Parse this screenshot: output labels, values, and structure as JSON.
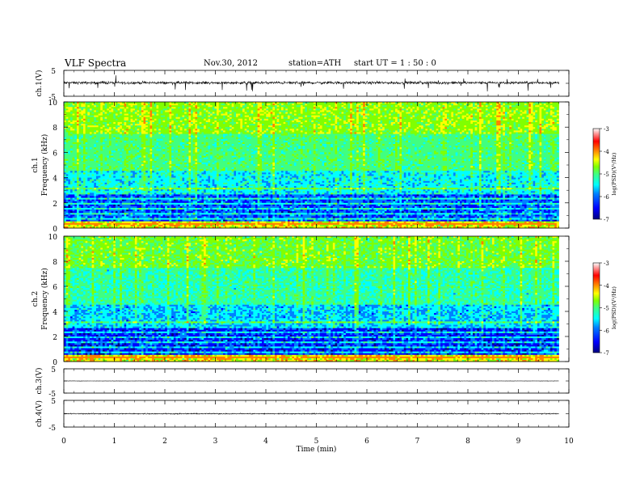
{
  "header": {
    "title": "VLF  Spectra",
    "date": "Nov.30, 2012",
    "station": "station=ATH",
    "start": "start  UT  =   1 : 50 : 0"
  },
  "colors": {
    "colormap": [
      "#000080",
      "#0000ff",
      "#0080ff",
      "#00ffff",
      "#40ff80",
      "#80ff00",
      "#ffff00",
      "#ff8000",
      "#ff0000",
      "#ffffff"
    ]
  },
  "chart_data": [
    {
      "type": "line",
      "ylabel": "ch.1(V)",
      "yticks": [
        "5",
        "-5"
      ],
      "ylim": [
        -5,
        5
      ],
      "description_values": {
        "baseline": 0.2,
        "noise_amplitude": 1.2
      }
    },
    {
      "type": "heatmap",
      "ylabel_channel": "ch.1",
      "ylabel": "Frequency  (kHz)",
      "yticks": [
        "10",
        "8",
        "6",
        "4",
        "2",
        "0"
      ],
      "ylim": [
        0,
        10
      ],
      "xlim": [
        0,
        10
      ],
      "colorbar": {
        "label": "log(PSD)(V²/Hz)",
        "ticks": [
          "-3",
          "-4",
          "-5",
          "-6",
          "-7"
        ],
        "range": [
          -7,
          -3
        ]
      }
    },
    {
      "type": "heatmap",
      "ylabel_channel": "ch.2",
      "ylabel": "Frequency  (kHz)",
      "yticks": [
        "10",
        "8",
        "6",
        "4",
        "2",
        "0"
      ],
      "ylim": [
        0,
        10
      ],
      "xlim": [
        0,
        10
      ],
      "colorbar": {
        "label": "log(PSD)(V²/Hz)",
        "ticks": [
          "-3",
          "-4",
          "-5",
          "-6",
          "-7"
        ],
        "range": [
          -7,
          -3
        ]
      }
    },
    {
      "type": "line",
      "ylabel": "ch.3(V)",
      "yticks": [
        "5",
        "-5"
      ],
      "ylim": [
        -5,
        5
      ],
      "description_values": {
        "baseline": 0.0,
        "noise_amplitude": 0.05
      }
    },
    {
      "type": "line",
      "ylabel": "ch.4(V)",
      "yticks": [
        "5",
        "-5"
      ],
      "ylim": [
        -5,
        5
      ],
      "description_values": {
        "baseline": 0.0,
        "noise_amplitude": 0.15
      },
      "xlabel": "Time  (min)",
      "xticks": [
        "0",
        "1",
        "2",
        "3",
        "4",
        "5",
        "6",
        "7",
        "8",
        "9",
        "10"
      ],
      "xlim": [
        0,
        10
      ],
      "data_end": 9.8
    }
  ]
}
